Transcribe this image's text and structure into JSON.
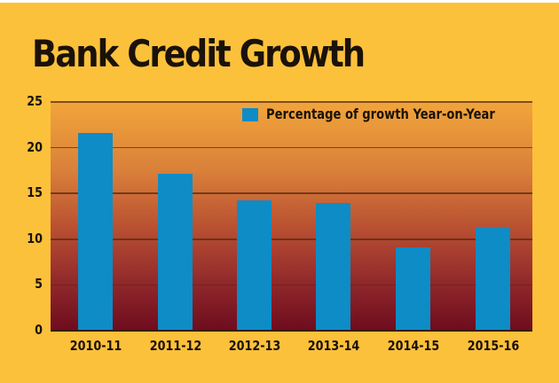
{
  "title": "Bank Credit Growth",
  "legend": {
    "label": "Percentage of growth Year-on-Year",
    "color": "#0d8cc6"
  },
  "y_ticks": [
    "25",
    "20",
    "15",
    "10",
    "5",
    "0"
  ],
  "x_ticks": [
    "2010-11",
    "2011-12",
    "2012-13",
    "2013-14",
    "2014-15",
    "2015-16"
  ],
  "colors": {
    "background": "#fcc13b",
    "bar": "#0d8cc6",
    "plot_top": "#f2a53a",
    "plot_bottom": "#6e0c1e"
  },
  "chart_data": {
    "type": "bar",
    "title": "Bank Credit Growth",
    "categories": [
      "2010-11",
      "2011-12",
      "2012-13",
      "2013-14",
      "2014-15",
      "2015-16"
    ],
    "series": [
      {
        "name": "Percentage of growth Year-on-Year",
        "values": [
          21.6,
          17.2,
          14.2,
          14.0,
          9.1,
          11.3
        ]
      }
    ],
    "xlabel": "",
    "ylabel": "",
    "ylim": [
      0,
      25
    ],
    "yticks": [
      0,
      5,
      10,
      15,
      20,
      25
    ],
    "grid": true,
    "legend_position": "top-right inside plot"
  }
}
